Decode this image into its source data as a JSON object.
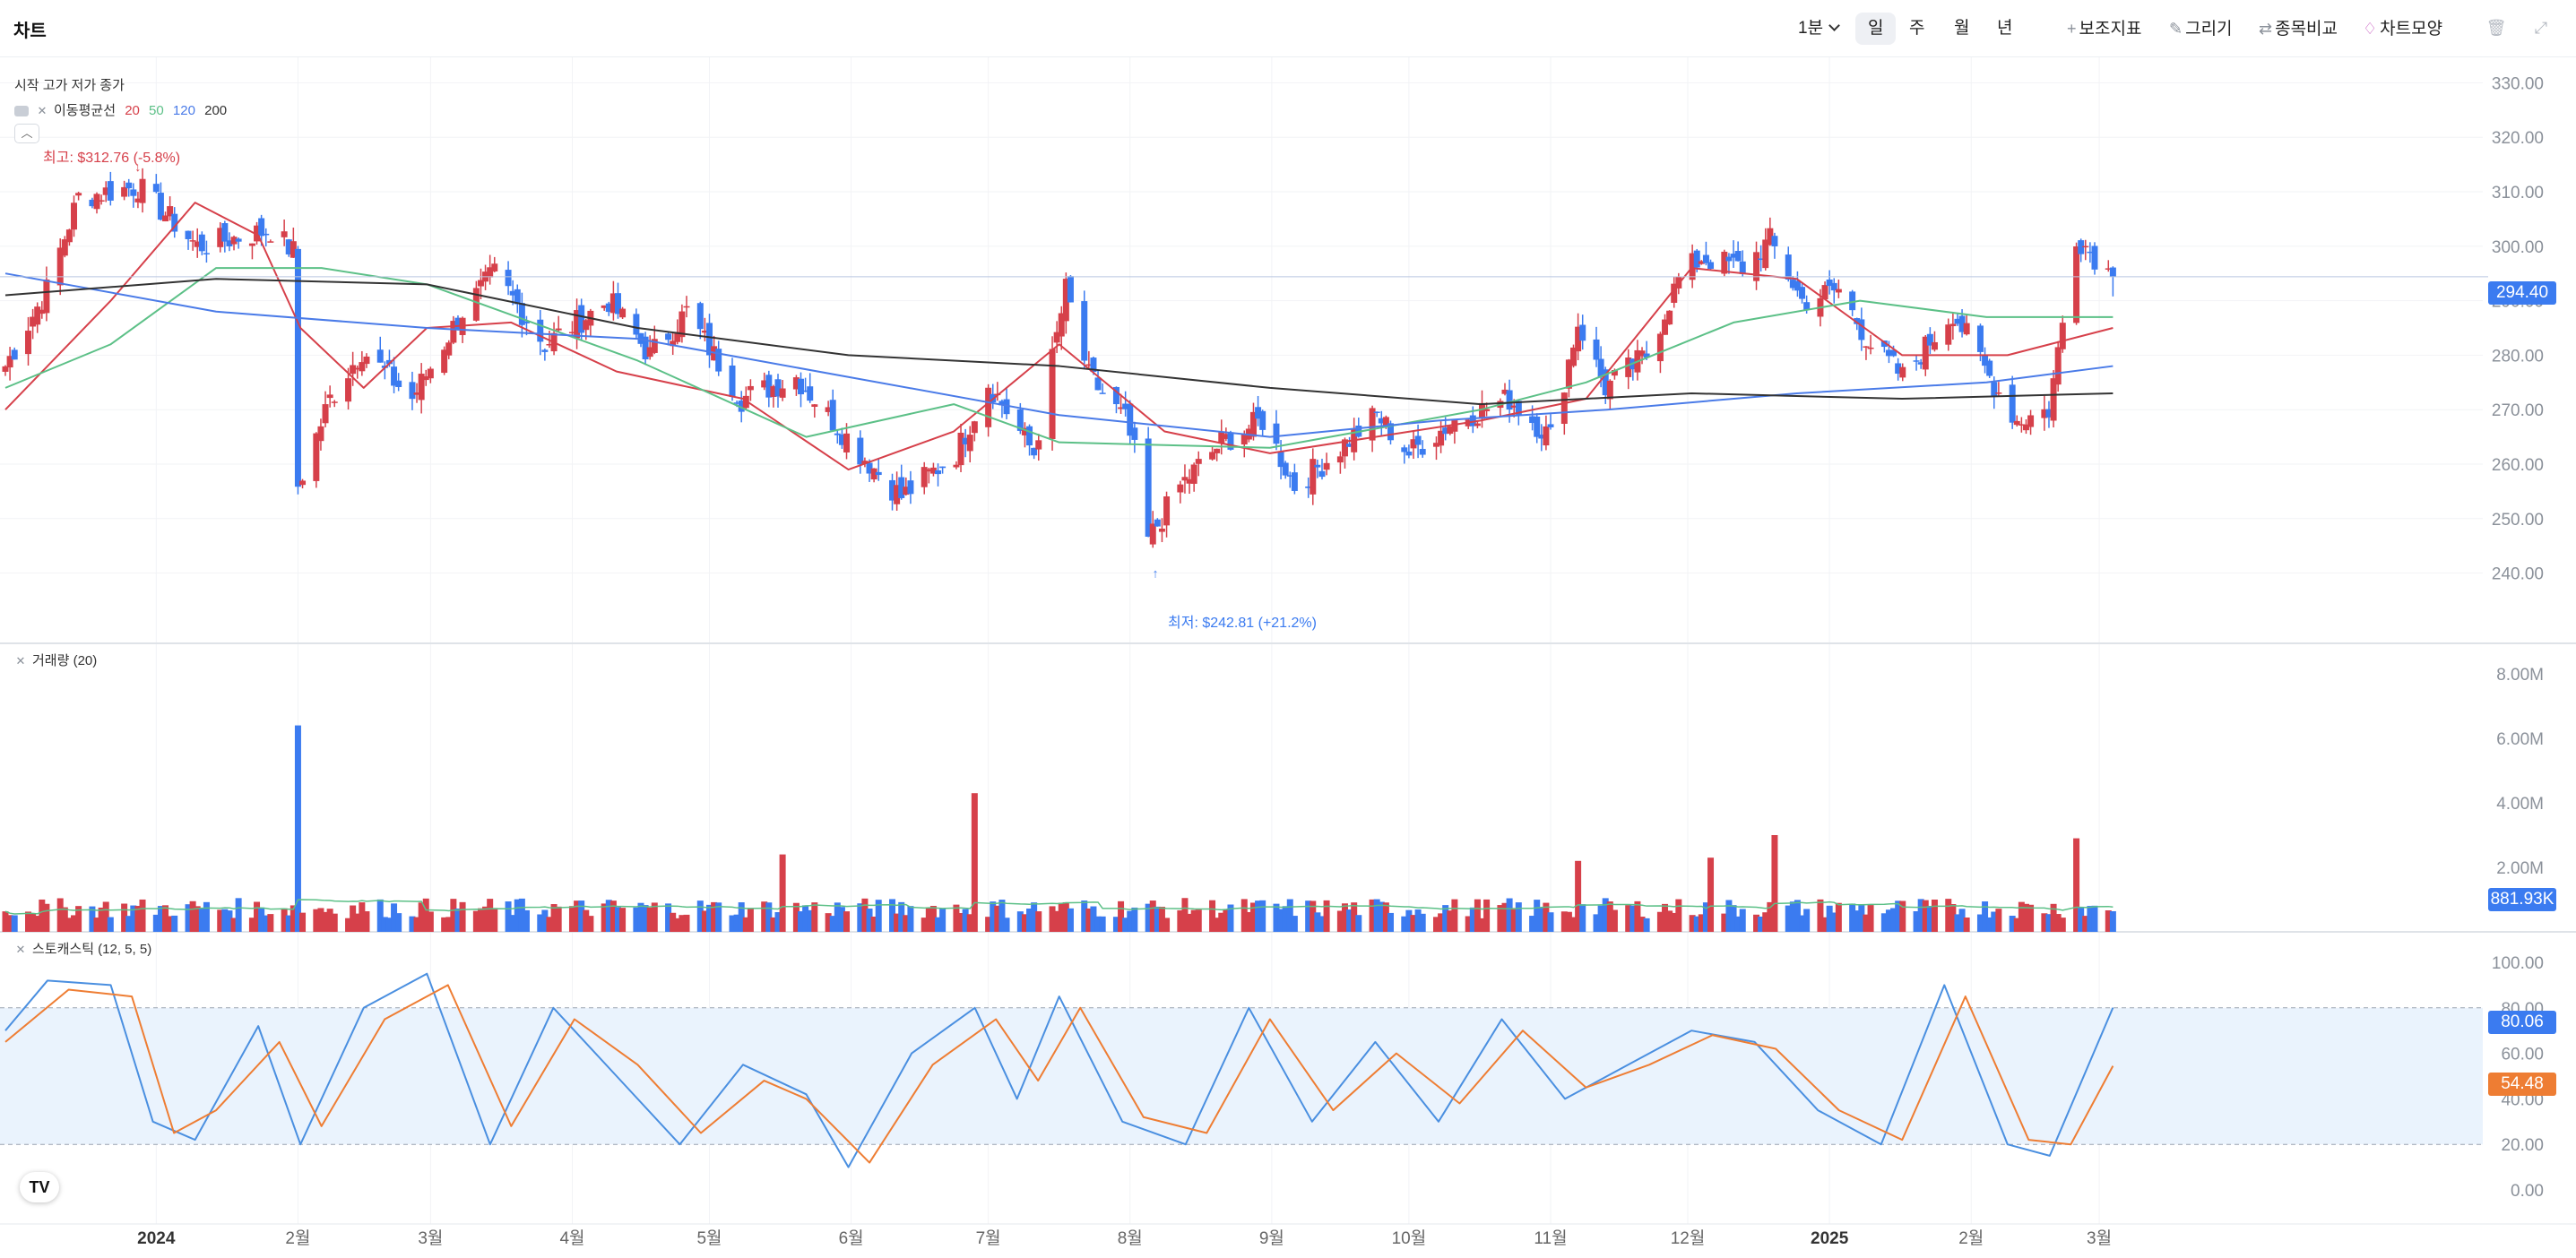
{
  "header": {
    "title": "차트",
    "interval": "1분",
    "periods": [
      "일",
      "주",
      "월",
      "년"
    ],
    "selected_period": "일",
    "tools": [
      {
        "label": "보조지표",
        "icon": "plus-icon"
      },
      {
        "label": "그리기",
        "icon": "pencil-icon"
      },
      {
        "label": "종목비교",
        "icon": "compare-arrows-icon"
      },
      {
        "label": "차트모양",
        "icon": "chart-style-icon"
      }
    ],
    "right_icons": [
      "trash-icon",
      "expand-icon"
    ]
  },
  "price_pane": {
    "ohlc_label": "시작 고가 저가 종가",
    "ma_label": "이동평균선",
    "ma_periods": [
      {
        "label": "20",
        "color": "#d6404a"
      },
      {
        "label": "50",
        "color": "#5cc087"
      },
      {
        "label": "120",
        "color": "#4a7be8"
      },
      {
        "label": "200",
        "color": "#333333"
      }
    ],
    "collapse_icon": "chevron-up-icon",
    "high_label": "최고: $312.76 (-5.8%)",
    "low_label": "최저: $242.81 (+21.2%)",
    "current_price": "294.40"
  },
  "volume_pane": {
    "label": "거래량 (20)",
    "current_value": "881.93K"
  },
  "stoch_pane": {
    "label": "스토캐스틱 (12, 5, 5)",
    "k_value": "80.06",
    "d_value": "54.48"
  },
  "colors": {
    "up": "#d6404a",
    "down": "#3b7bf0",
    "ma20": "#d6404a",
    "ma50": "#5cc087",
    "ma120": "#4a7be8",
    "ma200": "#333333",
    "stoch_k": "#4a8fe0",
    "stoch_d": "#ee7d33",
    "stoch_band": "#eaf3fd"
  },
  "chart_data": [
    {
      "type": "candlestick",
      "title": "",
      "ylim": [
        235,
        335
      ],
      "y_ticks": [
        "330.00",
        "320.00",
        "310.00",
        "300.00",
        "290.00",
        "280.00",
        "270.00",
        "260.00",
        "250.00",
        "240.00"
      ],
      "x_tick_labels": [
        "2024",
        "2월",
        "3월",
        "4월",
        "5월",
        "6월",
        "7월",
        "8월",
        "9월",
        "10월",
        "11월",
        "12월",
        "2025",
        "2월",
        "3월"
      ],
      "x_tick_dates": [
        "2024-01-01",
        "2024-02-01",
        "2024-03-01",
        "2024-04-01",
        "2024-05-01",
        "2024-06-01",
        "2024-07-01",
        "2024-08-01",
        "2024-09-01",
        "2024-10-01",
        "2024-11-01",
        "2024-12-01",
        "2025-01-01",
        "2025-02-01",
        "2025-03-01"
      ],
      "x_range": [
        "2023-11-29",
        "2025-03-30"
      ],
      "key_points": [
        {
          "date": "2023-11-29",
          "close": 278
        },
        {
          "date": "2023-12-08",
          "close": 292
        },
        {
          "date": "2023-12-15",
          "close": 309
        },
        {
          "date": "2023-12-28",
          "close": 311
        },
        {
          "date": "2024-01-10",
          "close": 300
        },
        {
          "date": "2024-01-26",
          "close": 303
        },
        {
          "date": "2024-01-31",
          "close": 299
        },
        {
          "date": "2024-02-01",
          "close": 256
        },
        {
          "date": "2024-02-08",
          "close": 272
        },
        {
          "date": "2024-02-15",
          "close": 281
        },
        {
          "date": "2024-02-26",
          "close": 272
        },
        {
          "date": "2024-03-08",
          "close": 288
        },
        {
          "date": "2024-03-15",
          "close": 295
        },
        {
          "date": "2024-03-26",
          "close": 282
        },
        {
          "date": "2024-04-09",
          "close": 290
        },
        {
          "date": "2024-04-18",
          "close": 280
        },
        {
          "date": "2024-04-26",
          "close": 288
        },
        {
          "date": "2024-05-08",
          "close": 272
        },
        {
          "date": "2024-05-20",
          "close": 276
        },
        {
          "date": "2024-06-03",
          "close": 262
        },
        {
          "date": "2024-06-12",
          "close": 254
        },
        {
          "date": "2024-06-24",
          "close": 262
        },
        {
          "date": "2024-07-01",
          "close": 275
        },
        {
          "date": "2024-07-11",
          "close": 262
        },
        {
          "date": "2024-07-18",
          "close": 292
        },
        {
          "date": "2024-07-23",
          "close": 276
        },
        {
          "date": "2024-07-31",
          "close": 268
        },
        {
          "date": "2024-08-02",
          "close": 262
        },
        {
          "date": "2024-08-05",
          "close": 246
        },
        {
          "date": "2024-08-12",
          "close": 256
        },
        {
          "date": "2024-08-21",
          "close": 264
        },
        {
          "date": "2024-08-30",
          "close": 268
        },
        {
          "date": "2024-09-06",
          "close": 256
        },
        {
          "date": "2024-09-12",
          "close": 260
        },
        {
          "date": "2024-09-24",
          "close": 269
        },
        {
          "date": "2024-10-01",
          "close": 262
        },
        {
          "date": "2024-10-11",
          "close": 268
        },
        {
          "date": "2024-10-23",
          "close": 272
        },
        {
          "date": "2024-11-01",
          "close": 265
        },
        {
          "date": "2024-11-07",
          "close": 286
        },
        {
          "date": "2024-11-13",
          "close": 274
        },
        {
          "date": "2024-11-22",
          "close": 280
        },
        {
          "date": "2024-11-29",
          "close": 294
        },
        {
          "date": "2024-12-04",
          "close": 298
        },
        {
          "date": "2024-12-13",
          "close": 296
        },
        {
          "date": "2024-12-19",
          "close": 301
        },
        {
          "date": "2024-12-26",
          "close": 290
        },
        {
          "date": "2025-01-03",
          "close": 292
        },
        {
          "date": "2025-01-10",
          "close": 282
        },
        {
          "date": "2025-01-17",
          "close": 276
        },
        {
          "date": "2025-01-28",
          "close": 288
        },
        {
          "date": "2025-02-05",
          "close": 276
        },
        {
          "date": "2025-02-11",
          "close": 268
        },
        {
          "date": "2025-02-18",
          "close": 270
        },
        {
          "date": "2025-02-24",
          "close": 302
        },
        {
          "date": "2025-03-04",
          "close": 294.4
        }
      ],
      "high": {
        "value": 312.76,
        "date": "2023-12-28",
        "label": "최고: $312.76 (-5.8%)"
      },
      "low": {
        "value": 242.81,
        "date": "2024-08-05",
        "label": "최저: $242.81 (+21.2%)"
      },
      "last_price": 294.4,
      "moving_averages": [
        {
          "name": "20",
          "key_points": [
            [
              0,
              270
            ],
            [
              0.05,
              290
            ],
            [
              0.09,
              308
            ],
            [
              0.12,
              302
            ],
            [
              0.14,
              285
            ],
            [
              0.17,
              274
            ],
            [
              0.2,
              285
            ],
            [
              0.24,
              286
            ],
            [
              0.29,
              277
            ],
            [
              0.35,
              272
            ],
            [
              0.4,
              259
            ],
            [
              0.45,
              266
            ],
            [
              0.5,
              282
            ],
            [
              0.55,
              266
            ],
            [
              0.6,
              262
            ],
            [
              0.65,
              265
            ],
            [
              0.7,
              268
            ],
            [
              0.75,
              272
            ],
            [
              0.8,
              296
            ],
            [
              0.85,
              294
            ],
            [
              0.9,
              280
            ],
            [
              0.95,
              280
            ],
            [
              1,
              285
            ]
          ]
        },
        {
          "name": "50",
          "key_points": [
            [
              0,
              274
            ],
            [
              0.05,
              282
            ],
            [
              0.1,
              296
            ],
            [
              0.15,
              296
            ],
            [
              0.2,
              293
            ],
            [
              0.3,
              279
            ],
            [
              0.38,
              265
            ],
            [
              0.45,
              271
            ],
            [
              0.5,
              264
            ],
            [
              0.6,
              263
            ],
            [
              0.7,
              270
            ],
            [
              0.75,
              275
            ],
            [
              0.82,
              286
            ],
            [
              0.88,
              290
            ],
            [
              0.94,
              287
            ],
            [
              1,
              287
            ]
          ]
        },
        {
          "name": "120",
          "key_points": [
            [
              0,
              295
            ],
            [
              0.1,
              288
            ],
            [
              0.2,
              285
            ],
            [
              0.3,
              283
            ],
            [
              0.4,
              276
            ],
            [
              0.5,
              269
            ],
            [
              0.6,
              265
            ],
            [
              0.68,
              268
            ],
            [
              0.76,
              270
            ],
            [
              0.85,
              273
            ],
            [
              0.94,
              275
            ],
            [
              1,
              278
            ]
          ]
        },
        {
          "name": "200",
          "key_points": [
            [
              0,
              291
            ],
            [
              0.1,
              294
            ],
            [
              0.2,
              293
            ],
            [
              0.3,
              285
            ],
            [
              0.4,
              280
            ],
            [
              0.5,
              278
            ],
            [
              0.6,
              274
            ],
            [
              0.7,
              271
            ],
            [
              0.8,
              273
            ],
            [
              0.9,
              272
            ],
            [
              1,
              273
            ]
          ]
        }
      ]
    },
    {
      "type": "bar",
      "title": "거래량 (20)",
      "ylim": [
        0,
        8000000
      ],
      "y_ticks": [
        "8.00M",
        "6.00M",
        "4.00M",
        "2.00M"
      ],
      "typical_volume": 700000,
      "spikes": [
        {
          "date": "2024-02-01",
          "value": 6400000,
          "direction": "down"
        },
        {
          "date": "2024-06-28",
          "value": 4300000,
          "direction": "up"
        },
        {
          "date": "2024-05-17",
          "value": 2400000,
          "direction": "up"
        },
        {
          "date": "2024-11-07",
          "value": 2200000,
          "direction": "up"
        },
        {
          "date": "2024-12-06",
          "value": 2300000,
          "direction": "up"
        },
        {
          "date": "2024-12-20",
          "value": 3000000,
          "direction": "up"
        },
        {
          "date": "2025-02-24",
          "value": 2900000,
          "direction": "up"
        }
      ],
      "last_value": "881.93K"
    },
    {
      "type": "line",
      "title": "스토캐스틱 (12, 5, 5)",
      "ylim": [
        0,
        100
      ],
      "y_ticks": [
        "100.00",
        "80.00",
        "60.00",
        "40.00",
        "20.00",
        "0.00"
      ],
      "bands": [
        20,
        80
      ],
      "series": [
        {
          "name": "%K",
          "key_points": [
            [
              0,
              70
            ],
            [
              0.02,
              92
            ],
            [
              0.05,
              90
            ],
            [
              0.07,
              30
            ],
            [
              0.09,
              22
            ],
            [
              0.12,
              72
            ],
            [
              0.14,
              20
            ],
            [
              0.17,
              80
            ],
            [
              0.2,
              95
            ],
            [
              0.23,
              20
            ],
            [
              0.26,
              80
            ],
            [
              0.29,
              50
            ],
            [
              0.32,
              20
            ],
            [
              0.35,
              55
            ],
            [
              0.38,
              42
            ],
            [
              0.4,
              10
            ],
            [
              0.43,
              60
            ],
            [
              0.46,
              80
            ],
            [
              0.48,
              40
            ],
            [
              0.5,
              85
            ],
            [
              0.53,
              30
            ],
            [
              0.56,
              20
            ],
            [
              0.59,
              80
            ],
            [
              0.62,
              30
            ],
            [
              0.65,
              65
            ],
            [
              0.68,
              30
            ],
            [
              0.71,
              75
            ],
            [
              0.74,
              40
            ],
            [
              0.77,
              55
            ],
            [
              0.8,
              70
            ],
            [
              0.83,
              65
            ],
            [
              0.86,
              35
            ],
            [
              0.89,
              20
            ],
            [
              0.92,
              90
            ],
            [
              0.95,
              20
            ],
            [
              0.97,
              15
            ],
            [
              1,
              80.06
            ]
          ]
        },
        {
          "name": "%D",
          "key_points": [
            [
              0,
              65
            ],
            [
              0.03,
              88
            ],
            [
              0.06,
              85
            ],
            [
              0.08,
              25
            ],
            [
              0.1,
              35
            ],
            [
              0.13,
              65
            ],
            [
              0.15,
              28
            ],
            [
              0.18,
              75
            ],
            [
              0.21,
              90
            ],
            [
              0.24,
              28
            ],
            [
              0.27,
              75
            ],
            [
              0.3,
              55
            ],
            [
              0.33,
              25
            ],
            [
              0.36,
              48
            ],
            [
              0.38,
              40
            ],
            [
              0.41,
              12
            ],
            [
              0.44,
              55
            ],
            [
              0.47,
              75
            ],
            [
              0.49,
              48
            ],
            [
              0.51,
              80
            ],
            [
              0.54,
              32
            ],
            [
              0.57,
              25
            ],
            [
              0.6,
              75
            ],
            [
              0.63,
              35
            ],
            [
              0.66,
              60
            ],
            [
              0.69,
              38
            ],
            [
              0.72,
              70
            ],
            [
              0.75,
              45
            ],
            [
              0.78,
              55
            ],
            [
              0.81,
              68
            ],
            [
              0.84,
              62
            ],
            [
              0.87,
              35
            ],
            [
              0.9,
              22
            ],
            [
              0.93,
              85
            ],
            [
              0.96,
              22
            ],
            [
              0.98,
              20
            ],
            [
              1,
              54.48
            ]
          ]
        }
      ]
    }
  ]
}
